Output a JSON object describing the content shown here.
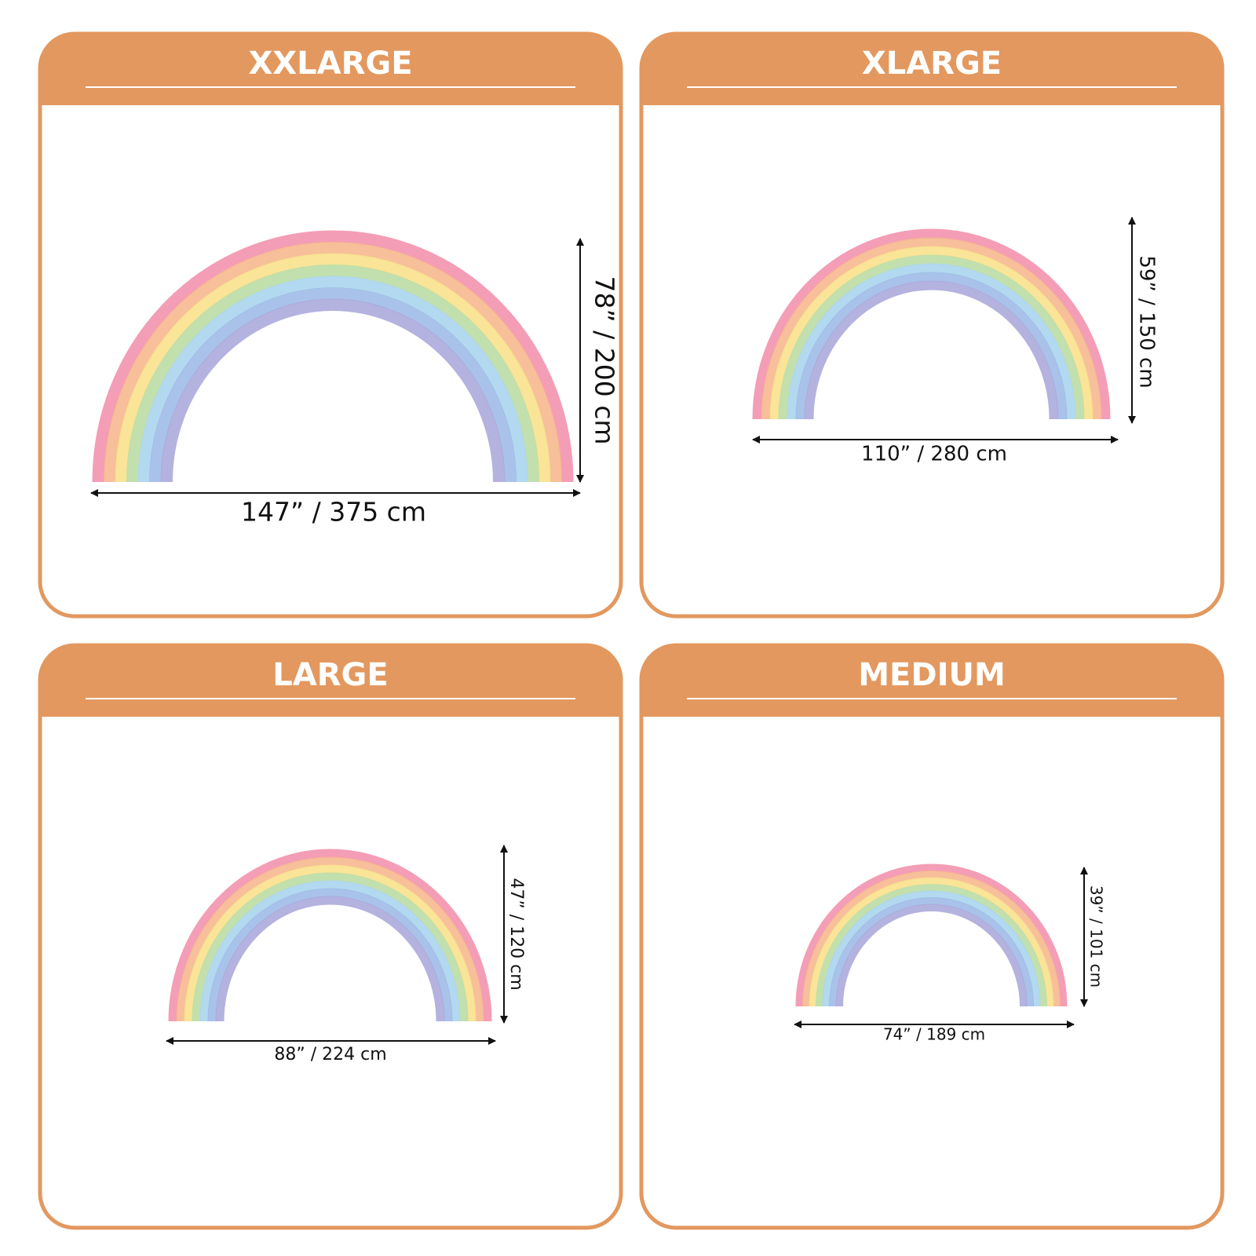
{
  "panels": [
    {
      "title": "XXLARGE",
      "width": "147” / 375 cm",
      "height": "78” / 200 cm"
    },
    {
      "title": "XLARGE",
      "width": "110” / 280 cm",
      "height": "59” / 150 cm"
    },
    {
      "title": "LARGE",
      "width": "88” / 224 cm",
      "height": "47” / 120 cm"
    },
    {
      "title": "MEDIUM",
      "width": "74” / 189 cm",
      "height": "39” / 101 cm"
    }
  ]
}
